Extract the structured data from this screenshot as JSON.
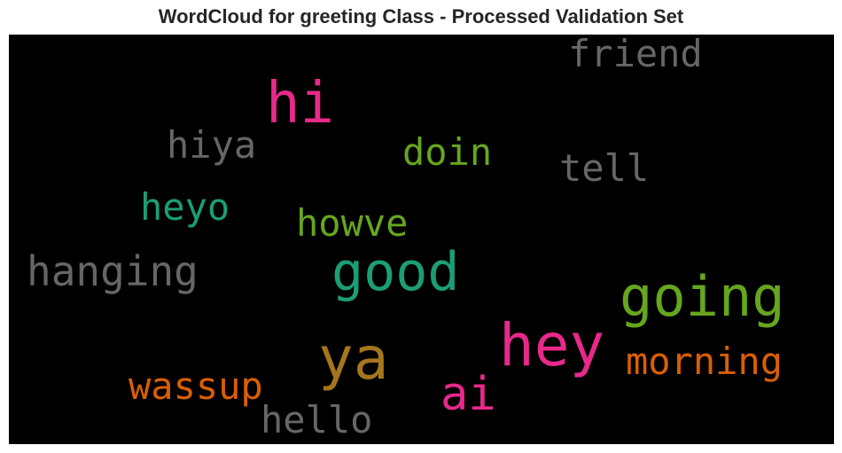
{
  "title": "WordCloud for greeting Class - Processed Validation Set",
  "background_color": "#000000",
  "words": {
    "friend": {
      "text": "friend",
      "color": "#666666"
    },
    "hi": {
      "text": "hi",
      "color": "#e7298a"
    },
    "hiya": {
      "text": "hiya",
      "color": "#666666"
    },
    "doin": {
      "text": "doin",
      "color": "#66a61e"
    },
    "tell": {
      "text": "tell",
      "color": "#666666"
    },
    "heyo": {
      "text": "heyo",
      "color": "#1b9e77"
    },
    "howve": {
      "text": "howve",
      "color": "#66a61e"
    },
    "hanging": {
      "text": "hanging",
      "color": "#666666"
    },
    "good": {
      "text": "good",
      "color": "#1b9e77"
    },
    "going": {
      "text": "going",
      "color": "#66a61e"
    },
    "hey": {
      "text": "hey",
      "color": "#e7298a"
    },
    "ya": {
      "text": "ya",
      "color": "#a6761d"
    },
    "morning": {
      "text": "morning",
      "color": "#d95f02"
    },
    "wassup": {
      "text": "wassup",
      "color": "#d95f02"
    },
    "ai": {
      "text": "ai",
      "color": "#e7298a"
    },
    "hello": {
      "text": "hello",
      "color": "#666666"
    }
  }
}
